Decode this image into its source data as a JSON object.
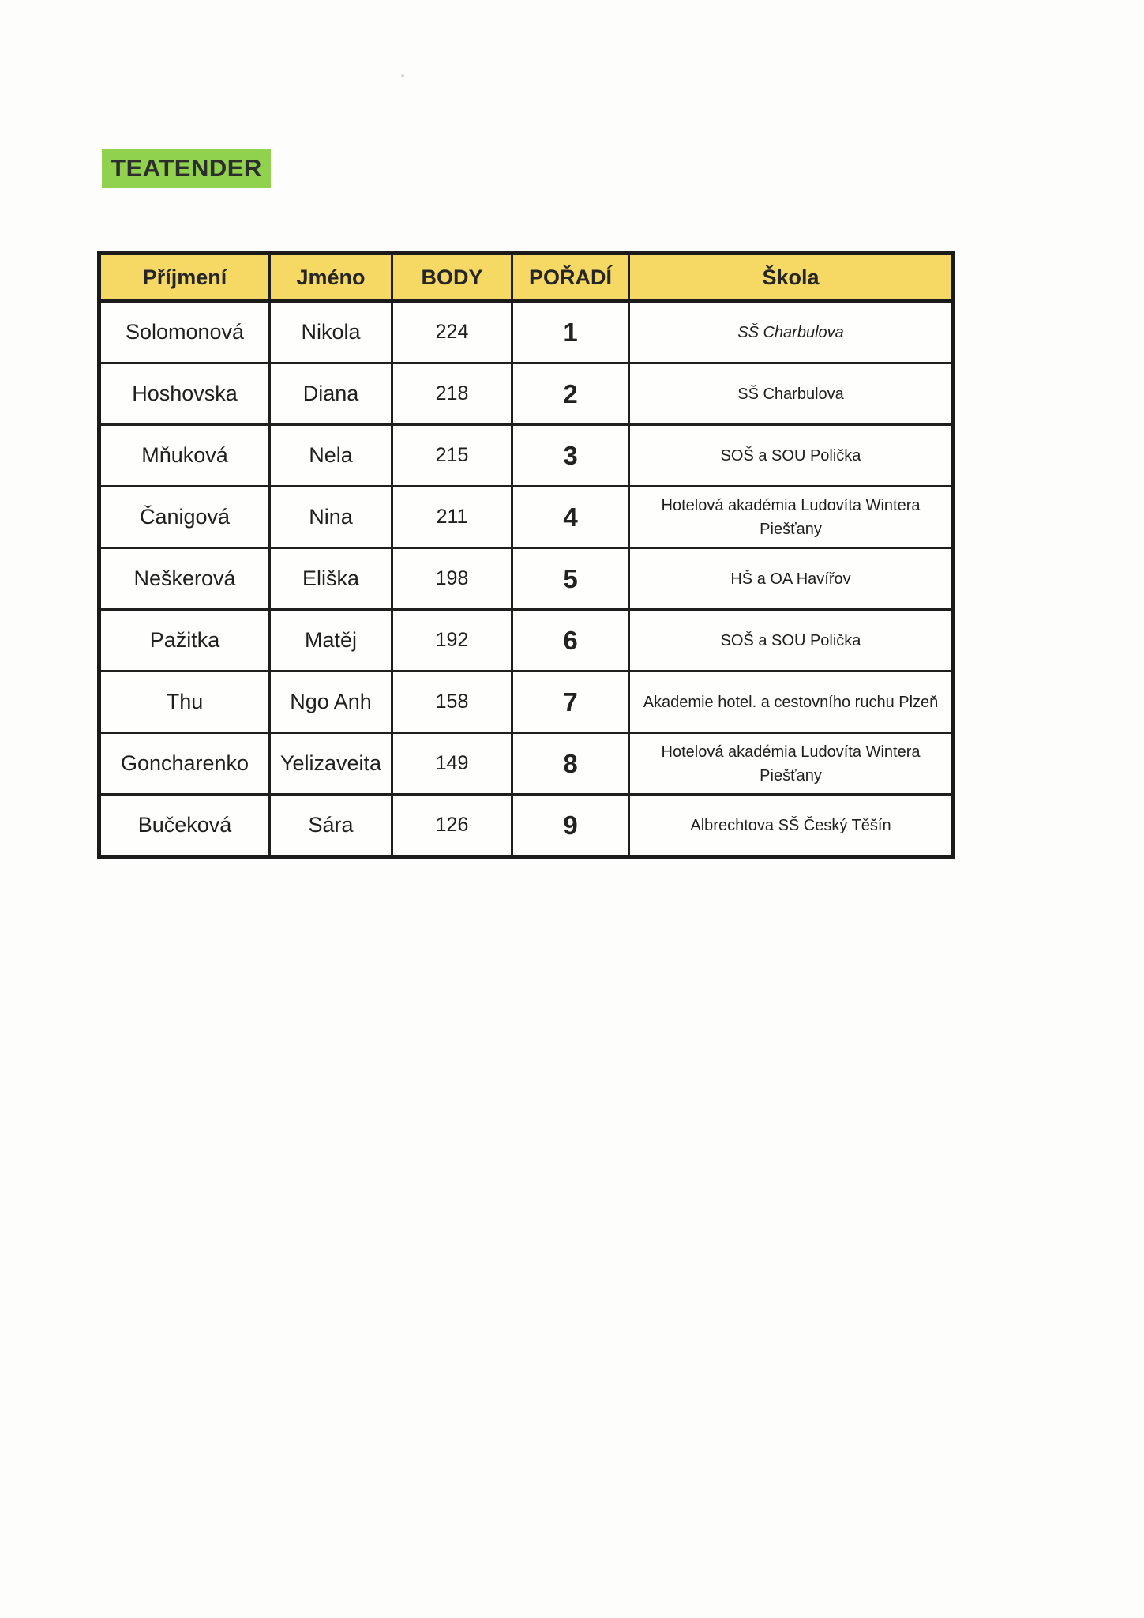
{
  "page": {
    "title": "TEATENDER"
  },
  "colors": {
    "title_highlight": "#90d14e",
    "header_background": "#f6d965",
    "table_border": "#1b1b1b"
  },
  "table": {
    "columns": [
      {
        "key": "surname",
        "label": "Příjmení"
      },
      {
        "key": "name",
        "label": "Jméno"
      },
      {
        "key": "points",
        "label": "BODY"
      },
      {
        "key": "rank",
        "label": "POŘADÍ"
      },
      {
        "key": "school",
        "label": "Škola"
      }
    ],
    "rows": [
      {
        "surname": "Solomonová",
        "name": "Nikola",
        "points": "224",
        "rank": "1",
        "school": "SŠ Charbulova",
        "school_italic": true
      },
      {
        "surname": "Hoshovska",
        "name": "Diana",
        "points": "218",
        "rank": "2",
        "school": "SŠ Charbulova",
        "school_italic": false
      },
      {
        "surname": "Mňuková",
        "name": "Nela",
        "points": "215",
        "rank": "3",
        "school": "SOŠ a SOU Polička",
        "school_italic": false
      },
      {
        "surname": "Čanigová",
        "name": "Nina",
        "points": "211",
        "rank": "4",
        "school": "Hotelová akadémia Ludovíta Wintera Piešťany",
        "school_italic": false
      },
      {
        "surname": "Neškerová",
        "name": "Eliška",
        "points": "198",
        "rank": "5",
        "school": "HŠ a OA Havířov",
        "school_italic": false
      },
      {
        "surname": "Pažitka",
        "name": "Matěj",
        "points": "192",
        "rank": "6",
        "school": "SOŠ a SOU Polička",
        "school_italic": false
      },
      {
        "surname": "Thu",
        "name": "Ngo Anh",
        "points": "158",
        "rank": "7",
        "school": "Akademie hotel. a cestovního ruchu Plzeň",
        "school_italic": false
      },
      {
        "surname": "Goncharenko",
        "name": "Yelizaveita",
        "points": "149",
        "rank": "8",
        "school": "Hotelová akadémia Ludovíta Wintera Piešťany",
        "school_italic": false
      },
      {
        "surname": "Bučeková",
        "name": "Sára",
        "points": "126",
        "rank": "9",
        "school": "Albrechtova SŠ Český Těšín",
        "school_italic": false
      }
    ]
  }
}
